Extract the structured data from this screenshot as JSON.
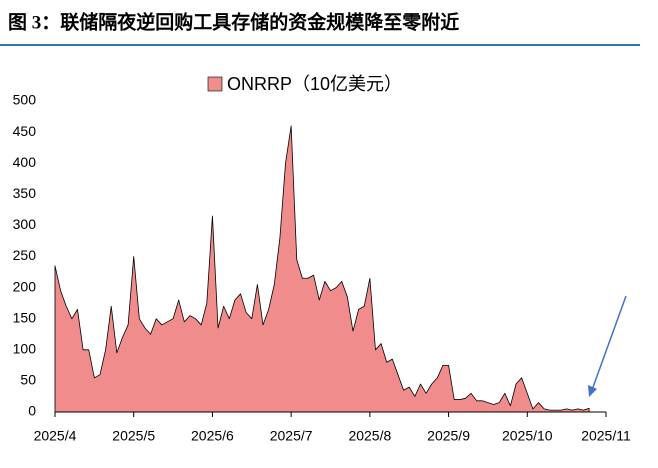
{
  "title": "图 3：联储隔夜逆回购工具存储的资金规模降至零附近",
  "chart_data": {
    "type": "area",
    "categories": [
      "2025/4",
      null,
      null,
      null,
      null,
      null,
      null,
      null,
      null,
      null,
      null,
      null,
      null,
      null,
      "2025/5",
      null,
      null,
      null,
      null,
      null,
      null,
      null,
      null,
      null,
      null,
      null,
      null,
      null,
      "2025/6",
      null,
      null,
      null,
      null,
      null,
      null,
      null,
      null,
      null,
      null,
      null,
      null,
      null,
      "2025/7",
      null,
      null,
      null,
      null,
      null,
      null,
      null,
      null,
      null,
      null,
      null,
      null,
      null,
      "2025/8",
      null,
      null,
      null,
      null,
      null,
      null,
      null,
      null,
      null,
      null,
      null,
      null,
      null,
      "2025/9",
      null,
      null,
      null,
      null,
      null,
      null,
      null,
      null,
      null,
      null,
      null,
      null,
      null,
      "2025/10",
      null,
      null,
      null,
      null,
      null,
      null,
      null,
      null,
      null,
      null,
      null,
      null,
      null,
      "2025/11"
    ],
    "series": [
      {
        "name": "ONRRP（10亿美元）",
        "color": "#f08c8c",
        "values": [
          235,
          195,
          170,
          150,
          165,
          100,
          100,
          55,
          60,
          100,
          170,
          95,
          120,
          140,
          250,
          150,
          135,
          125,
          150,
          140,
          145,
          150,
          180,
          145,
          155,
          150,
          140,
          175,
          315,
          135,
          170,
          150,
          180,
          190,
          160,
          150,
          205,
          140,
          165,
          205,
          280,
          400,
          460,
          245,
          215,
          215,
          220,
          180,
          210,
          195,
          200,
          210,
          185,
          130,
          165,
          170,
          215,
          100,
          110,
          80,
          85,
          60,
          35,
          40,
          25,
          45,
          30,
          45,
          55,
          75,
          75,
          20,
          20,
          22,
          30,
          18,
          18,
          15,
          12,
          15,
          30,
          10,
          45,
          55,
          30,
          5,
          15,
          5,
          3,
          3,
          3,
          5,
          3,
          5,
          3,
          6,
          null,
          null,
          null
        ]
      }
    ],
    "ylim": [
      0,
      500
    ],
    "yticks": [
      0,
      50,
      100,
      150,
      200,
      250,
      300,
      350,
      400,
      450,
      500
    ],
    "legend": "top",
    "grid": false
  }
}
